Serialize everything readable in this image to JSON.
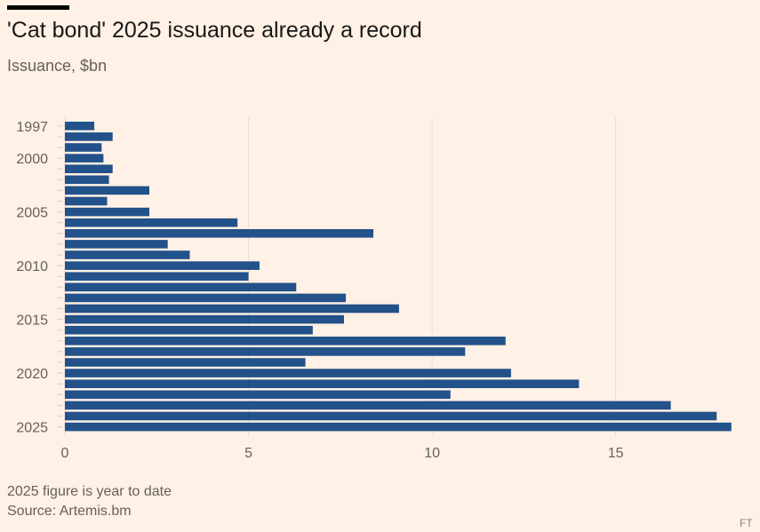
{
  "title": "'Cat bond' 2025 issuance already a record",
  "subtitle": "Issuance, $bn",
  "footnote": "2025 figure is year to date",
  "source": "Source: Artemis.bm",
  "colors": {
    "bar": "#23518A",
    "grid": "#E9DDD2",
    "background": "#FFF1E5"
  },
  "chart_data": {
    "type": "bar",
    "orientation": "horizontal",
    "categories": [
      1997,
      1998,
      1999,
      2000,
      2001,
      2002,
      2003,
      2004,
      2005,
      2006,
      2007,
      2008,
      2009,
      2010,
      2011,
      2012,
      2013,
      2014,
      2015,
      2016,
      2017,
      2018,
      2019,
      2020,
      2021,
      2022,
      2023,
      2024,
      2025
    ],
    "y_tick_labels": [
      "1997",
      "2000",
      "2005",
      "2010",
      "2015",
      "2020",
      "2025"
    ],
    "values": [
      0.8,
      1.3,
      1.0,
      1.05,
      1.3,
      1.2,
      2.3,
      1.15,
      2.3,
      4.7,
      8.4,
      2.8,
      3.4,
      5.3,
      5.0,
      6.3,
      7.65,
      9.1,
      7.6,
      6.75,
      12.0,
      10.9,
      6.55,
      12.15,
      14.0,
      10.5,
      16.5,
      17.75,
      18.15
    ],
    "x_ticks": [
      0,
      5,
      10,
      15
    ],
    "xlim": [
      0,
      18.3
    ],
    "grid": true,
    "xlabel": "",
    "ylabel": ""
  }
}
